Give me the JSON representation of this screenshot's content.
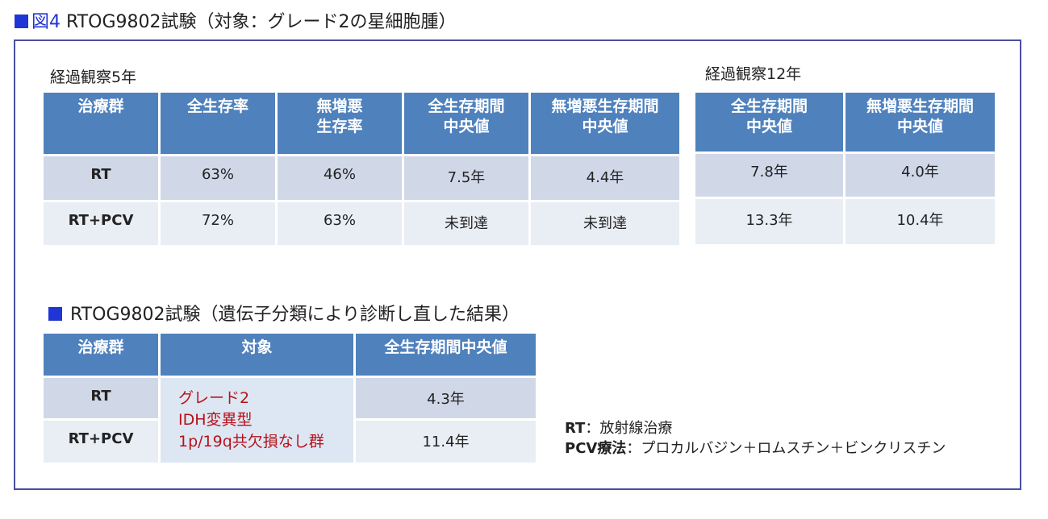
{
  "figure_title": {
    "label": "図4",
    "text": "RTOG9802試験（対象：グレード2の星細胞腫）"
  },
  "section1": {
    "caption_5yr": "経過観察5年",
    "caption_12yr": "経過観察12年",
    "table_5yr": {
      "headers": [
        [
          "治療群"
        ],
        [
          "全生存率"
        ],
        [
          "無増悪",
          "生存率"
        ],
        [
          "全生存期間",
          "中央値"
        ],
        [
          "無増悪生存期間",
          "中央値"
        ]
      ],
      "rows": [
        [
          "RT",
          "63%",
          "46%",
          "7.5年",
          "4.4年"
        ],
        [
          "RT+PCV",
          "72%",
          "63%",
          "未到達",
          "未到達"
        ]
      ]
    },
    "table_12yr": {
      "headers": [
        [
          "全生存期間",
          "中央値"
        ],
        [
          "無増悪生存期間",
          "中央値"
        ]
      ],
      "rows": [
        [
          "7.8年",
          "4.0年"
        ],
        [
          "13.3年",
          "10.4年"
        ]
      ]
    }
  },
  "section2": {
    "title": "RTOG9802試験（遺伝子分類により診断し直した結果）",
    "headers": [
      "治療群",
      "対象",
      "全生存期間中央値"
    ],
    "groups": [
      "RT",
      "RT+PCV"
    ],
    "target_lines": [
      "グレード2",
      "IDH変異型",
      "1p/19q共欠損なし群"
    ],
    "median_os": [
      "4.3年",
      "11.4年"
    ]
  },
  "notes": [
    {
      "term": "RT",
      "desc": "：放射線治療"
    },
    {
      "term": "PCV療法",
      "desc": "：プロカルバジン＋ロムスチン＋ビンクリスチン"
    }
  ],
  "colors": {
    "header_bg": "#4f81bd",
    "row_dark": "#d0d8e8",
    "row_light": "#e9edf4",
    "target_text": "#b5121b",
    "title_accent": "#1f35d6",
    "frame_border": "#4a4ea0"
  }
}
